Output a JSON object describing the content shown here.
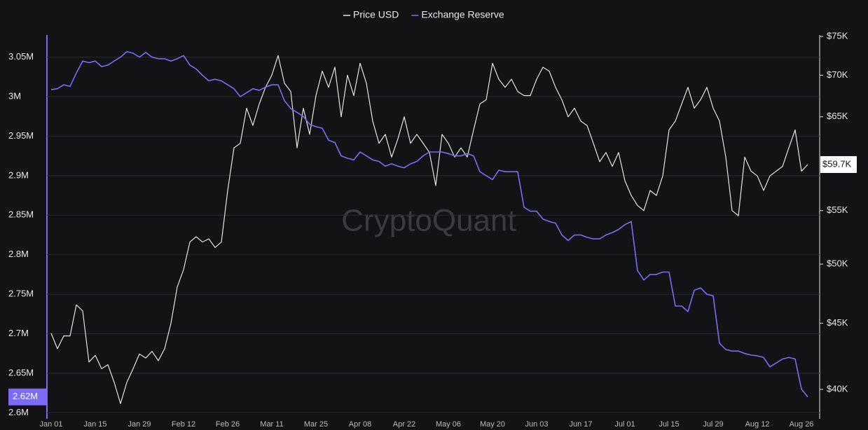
{
  "chart_data": {
    "type": "line",
    "watermark": "CryptoQuant",
    "categories": [
      "Jan 01",
      null,
      null,
      null,
      null,
      null,
      null,
      "Jan 15",
      null,
      null,
      null,
      null,
      null,
      null,
      "Jan 29",
      null,
      null,
      null,
      null,
      null,
      null,
      "Feb 12",
      null,
      null,
      null,
      null,
      null,
      null,
      "Feb 26",
      null,
      null,
      null,
      null,
      null,
      null,
      "Mar 11",
      null,
      null,
      null,
      null,
      null,
      null,
      "Mar 25",
      null,
      null,
      null,
      null,
      null,
      null,
      "Apr 08",
      null,
      null,
      null,
      null,
      null,
      null,
      "Apr 22",
      null,
      null,
      null,
      null,
      null,
      null,
      "May 06",
      null,
      null,
      null,
      null,
      null,
      null,
      "May 20",
      null,
      null,
      null,
      null,
      null,
      null,
      "Jun 03",
      null,
      null,
      null,
      null,
      null,
      null,
      "Jun 17",
      null,
      null,
      null,
      null,
      null,
      null,
      "Jul 01",
      null,
      null,
      null,
      null,
      null,
      null,
      "Jul 15",
      null,
      null,
      null,
      null,
      null,
      null,
      "Jul 29",
      null,
      null,
      null,
      null,
      null,
      null,
      "Aug 12",
      null,
      null,
      null,
      null,
      null,
      null,
      "Aug 26",
      null
    ],
    "series": [
      {
        "name": "Price USD",
        "color": "#e4e4e4",
        "axis": "y2",
        "values": [
          44200,
          43000,
          44000,
          44000,
          46500,
          46000,
          42000,
          42500,
          41500,
          41800,
          40500,
          39000,
          40500,
          41500,
          42600,
          42300,
          42800,
          42100,
          43000,
          45000,
          48000,
          49500,
          52000,
          52500,
          52000,
          52300,
          51500,
          52000,
          57000,
          61500,
          62000,
          66000,
          64000,
          66500,
          68500,
          70000,
          72500,
          69000,
          68000,
          61500,
          66000,
          63000,
          67500,
          70500,
          68500,
          71000,
          65000,
          70000,
          67500,
          71500,
          69000,
          64500,
          62000,
          63000,
          60500,
          62500,
          65000,
          62000,
          63000,
          62000,
          61000,
          57500,
          63000,
          62000,
          60500,
          61500,
          60500,
          63500,
          66500,
          67000,
          71500,
          69500,
          68500,
          69500,
          68000,
          67500,
          67500,
          69500,
          71000,
          70500,
          68500,
          67000,
          65000,
          66000,
          64500,
          64000,
          62000,
          60000,
          61000,
          59500,
          61000,
          58000,
          56500,
          55500,
          55000,
          57000,
          56500,
          58500,
          63500,
          64500,
          66500,
          68500,
          66000,
          67000,
          68500,
          66000,
          64500,
          60500,
          55000,
          54500,
          60500,
          59000,
          58500,
          57000,
          58500,
          59000,
          59500,
          61500,
          63500,
          59000,
          59700
        ]
      },
      {
        "name": "Exchange Reserve",
        "color": "#7b6cf6",
        "values": [
          3009000,
          3010000,
          3015000,
          3013000,
          3030000,
          3045000,
          3043000,
          3045000,
          3038000,
          3040000,
          3045000,
          3050000,
          3057000,
          3055000,
          3050000,
          3056000,
          3050000,
          3048000,
          3048000,
          3045000,
          3048000,
          3052000,
          3040000,
          3035000,
          3027000,
          3020000,
          3022000,
          3020000,
          3015000,
          3010000,
          3000000,
          3005000,
          3010000,
          3008000,
          3012000,
          3015000,
          3015000,
          2995000,
          2985000,
          2980000,
          2975000,
          2965000,
          2962000,
          2960000,
          2945000,
          2942000,
          2925000,
          2922000,
          2920000,
          2930000,
          2925000,
          2920000,
          2918000,
          2912000,
          2915000,
          2912000,
          2910000,
          2915000,
          2918000,
          2925000,
          2930000,
          2930000,
          2930000,
          2928000,
          2925000,
          2925000,
          2928000,
          2925000,
          2905000,
          2900000,
          2895000,
          2907000,
          2905000,
          2905000,
          2905000,
          2860000,
          2855000,
          2855000,
          2845000,
          2842000,
          2840000,
          2825000,
          2818000,
          2825000,
          2825000,
          2822000,
          2820000,
          2820000,
          2825000,
          2828000,
          2832000,
          2838000,
          2842000,
          2780000,
          2768000,
          2775000,
          2775000,
          2778000,
          2778000,
          2735000,
          2735000,
          2728000,
          2755000,
          2758000,
          2750000,
          2748000,
          2688000,
          2680000,
          2678000,
          2678000,
          2675000,
          2673000,
          2672000,
          2670000,
          2658000,
          2663000,
          2668000,
          2670000,
          2668000,
          2630000,
          2620000
        ]
      }
    ],
    "ylim": [
      2595000,
      3078000
    ],
    "yticks": [
      {
        "value": 2600000,
        "label": "2.6M"
      },
      {
        "value": 2650000,
        "label": "2.65M"
      },
      {
        "value": 2700000,
        "label": "2.7M"
      },
      {
        "value": 2750000,
        "label": "2.75M"
      },
      {
        "value": 2800000,
        "label": "2.8M"
      },
      {
        "value": 2850000,
        "label": "2.85M"
      },
      {
        "value": 2900000,
        "label": "2.9M"
      },
      {
        "value": 2950000,
        "label": "2.95M"
      },
      {
        "value": 3000000,
        "label": "3M"
      },
      {
        "value": 3050000,
        "label": "3.05M"
      }
    ],
    "y2lim": [
      38100,
      75190
    ],
    "y2log": true,
    "y2ticks": [
      {
        "value": 40000,
        "label": "$40K"
      },
      {
        "value": 45000,
        "label": "$45K"
      },
      {
        "value": 50000,
        "label": "$50K"
      },
      {
        "value": 55000,
        "label": "$55K"
      },
      {
        "value": 65000,
        "label": "$65K"
      },
      {
        "value": 70000,
        "label": "$70K"
      },
      {
        "value": 75000,
        "label": "$75K"
      }
    ],
    "y_badge": {
      "value": 2620000,
      "label": "2.62M"
    },
    "y2_badge": {
      "value": 59700,
      "label": "$59.7K"
    },
    "grid": true
  }
}
